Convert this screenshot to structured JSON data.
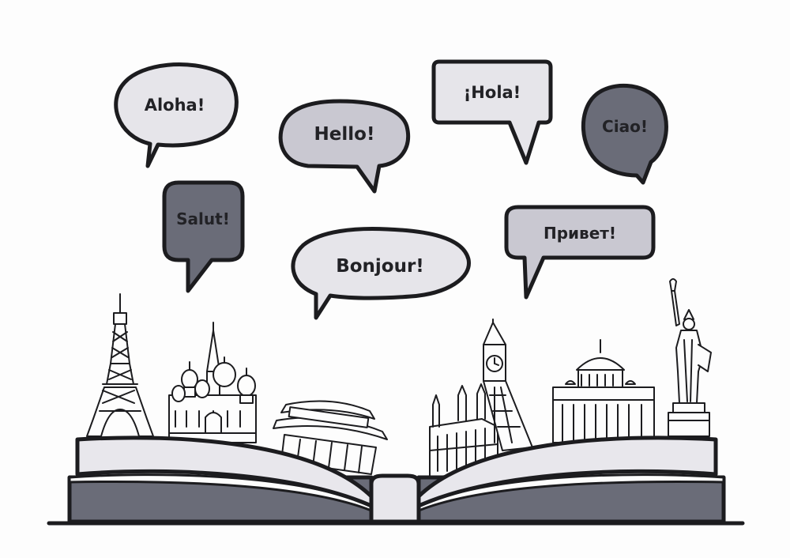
{
  "greetings": {
    "aloha": "Aloha!",
    "hello": "Hello!",
    "hola": "¡Hola!",
    "ciao": "Ciao!",
    "salut": "Salut!",
    "bonjour": "Bonjour!",
    "privet": "Привет!"
  },
  "landmarks": [
    "eiffel-tower",
    "st-basils-cathedral",
    "pagoda-gate",
    "westminster-palace",
    "big-ben",
    "st-peters-basilica",
    "statue-of-liberty"
  ],
  "colors": {
    "background": "#fdfdfd",
    "outline": "#1c1c1f",
    "bubble_light": "#e6e5ea",
    "bubble_mid": "#c9c8d1",
    "bubble_dark": "#6a6c78",
    "book_cover": "#6a6c78",
    "book_page": "#e8e7ec"
  }
}
